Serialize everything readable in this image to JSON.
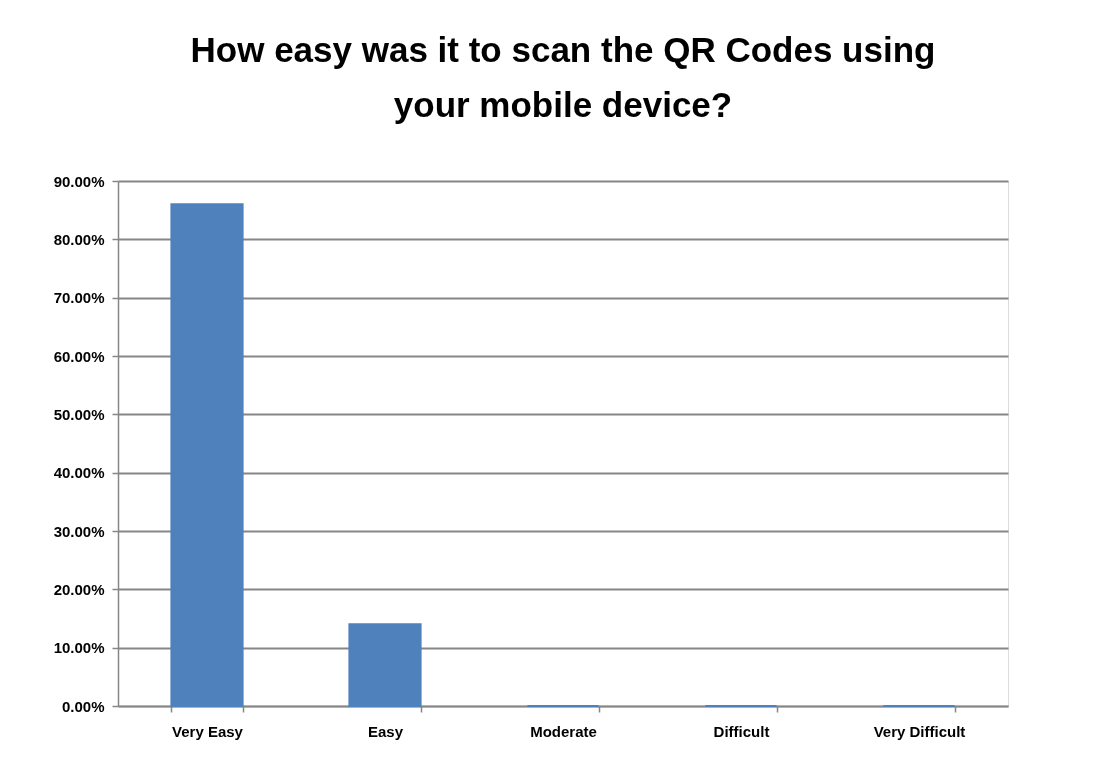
{
  "chart_data": {
    "type": "bar",
    "title": "How easy was it to scan the QR Codes using your mobile device?",
    "categories": [
      "Very Easy",
      "Easy",
      "Moderate",
      "Difficult",
      "Very Difficult"
    ],
    "values": [
      86,
      14,
      0,
      0,
      0
    ],
    "color": "#4f81bd",
    "ylim": [
      0,
      90
    ],
    "yticks": [
      {
        "value": 0,
        "label": "0.00%"
      },
      {
        "value": 10,
        "label": "10.00%"
      },
      {
        "value": 20,
        "label": "20.00%"
      },
      {
        "value": 30,
        "label": "30.00%"
      },
      {
        "value": 40,
        "label": "40.00%"
      },
      {
        "value": 50,
        "label": "50.00%"
      },
      {
        "value": 60,
        "label": "60.00%"
      },
      {
        "value": 70,
        "label": "70.00%"
      },
      {
        "value": 80,
        "label": "80.00%"
      },
      {
        "value": 90,
        "label": "90.00%"
      }
    ],
    "grid": "y"
  }
}
